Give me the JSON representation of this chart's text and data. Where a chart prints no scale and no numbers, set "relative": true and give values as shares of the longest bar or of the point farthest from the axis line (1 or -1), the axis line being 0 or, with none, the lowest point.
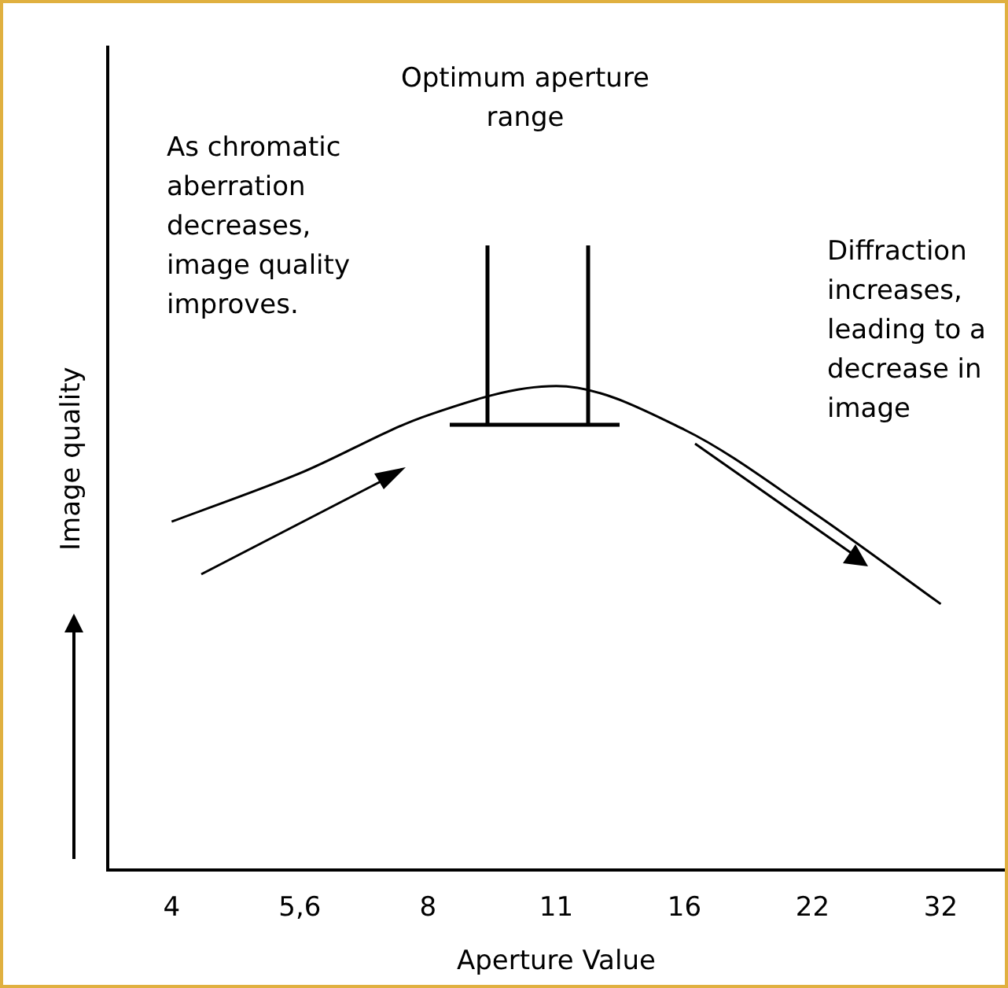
{
  "chart_data": {
    "type": "line",
    "relative": true,
    "xlabel": "Aperture Value",
    "ylabel": "Image quality",
    "categories": [
      "4",
      "5,6",
      "8",
      "11",
      "16",
      "22",
      "32"
    ],
    "series": [
      {
        "color": "#000000",
        "values": [
          0.72,
          0.82,
          0.94,
          1,
          0.91,
          0.74,
          0.55
        ]
      }
    ],
    "marker": "none",
    "grid": false,
    "legend": false,
    "annotations": [
      "As chromatic aberration decreases, image quality improves.",
      "Optimum aperture range",
      "Diffraction increases, leading to a decrease in image"
    ]
  }
}
